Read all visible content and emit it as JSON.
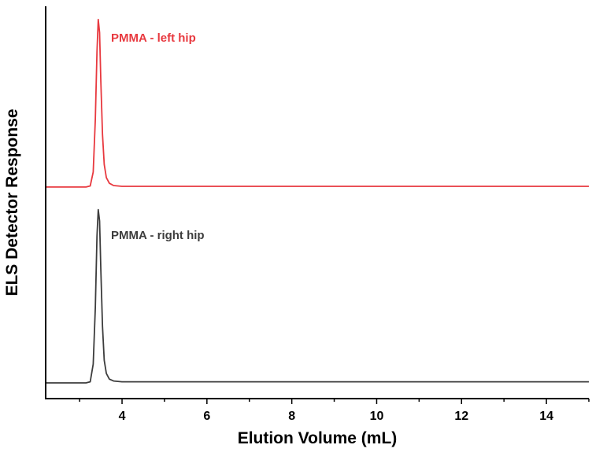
{
  "chart_data": {
    "type": "line",
    "title": "",
    "xlabel": "Elution Volume (mL)",
    "ylabel": "ELS Detector Response",
    "xlim": [
      2.2,
      15.0
    ],
    "ylim": [
      0,
      1
    ],
    "x_ticks": [
      "4",
      "6",
      "8",
      "10",
      "12",
      "14"
    ],
    "grid": false,
    "legend": "none",
    "series": [
      {
        "name": "PMMA - left hip",
        "color": "#e8393f",
        "x": [
          2.2,
          3.15,
          3.25,
          3.32,
          3.37,
          3.41,
          3.44,
          3.47,
          3.5,
          3.54,
          3.58,
          3.63,
          3.7,
          3.8,
          4.0,
          6.0,
          8.0,
          10.0,
          12.0,
          15.0
        ],
        "y": [
          0.52,
          0.52,
          0.523,
          0.56,
          0.7,
          0.88,
          0.965,
          0.93,
          0.8,
          0.66,
          0.58,
          0.545,
          0.53,
          0.524,
          0.522,
          0.522,
          0.522,
          0.522,
          0.522,
          0.522
        ]
      },
      {
        "name": "PMMA - right hip",
        "color": "#3d3d3d",
        "x": [
          2.2,
          3.15,
          3.25,
          3.32,
          3.37,
          3.41,
          3.44,
          3.47,
          3.5,
          3.54,
          3.58,
          3.63,
          3.7,
          3.8,
          4.0,
          6.0,
          8.0,
          10.0,
          12.0,
          15.0
        ],
        "y": [
          0.0,
          0.0,
          0.003,
          0.05,
          0.2,
          0.39,
          0.46,
          0.43,
          0.3,
          0.15,
          0.06,
          0.025,
          0.01,
          0.005,
          0.003,
          0.003,
          0.003,
          0.003,
          0.003,
          0.003
        ]
      }
    ]
  }
}
